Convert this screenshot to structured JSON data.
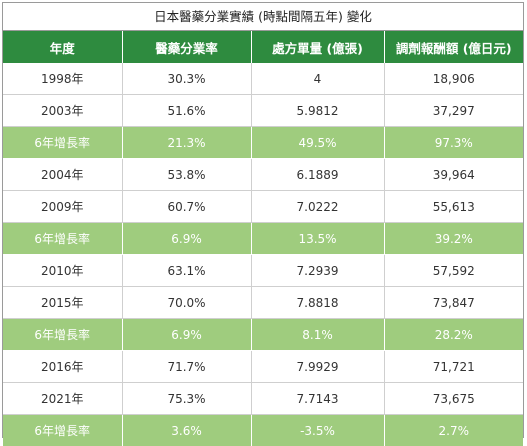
{
  "title": "日本醫藥分業實績 (時點間隔五年) 變化",
  "headers": [
    "年度",
    "醫藥分業率",
    "處方單量 (億張)",
    "調劑報酬額 (億日元)"
  ],
  "rows": [
    {
      "type": "data",
      "cells": [
        "1998年",
        "30.3%",
        "4",
        "18,906"
      ]
    },
    {
      "type": "data",
      "cells": [
        "2003年",
        "51.6%",
        "5.9812",
        "37,297"
      ]
    },
    {
      "type": "growth",
      "cells": [
        "6年增長率",
        "21.3%",
        "49.5%",
        "97.3%"
      ]
    },
    {
      "type": "data",
      "cells": [
        "2004年",
        "53.8%",
        "6.1889",
        "39,964"
      ]
    },
    {
      "type": "data",
      "cells": [
        "2009年",
        "60.7%",
        "7.0222",
        "55,613"
      ]
    },
    {
      "type": "growth",
      "cells": [
        "6年增長率",
        "6.9%",
        "13.5%",
        "39.2%"
      ]
    },
    {
      "type": "data",
      "cells": [
        "2010年",
        "63.1%",
        "7.2939",
        "57,592"
      ]
    },
    {
      "type": "data",
      "cells": [
        "2015年",
        "70.0%",
        "7.8818",
        "73,847"
      ]
    },
    {
      "type": "growth",
      "cells": [
        "6年增長率",
        "6.9%",
        "8.1%",
        "28.2%"
      ]
    },
    {
      "type": "data",
      "cells": [
        "2016年",
        "71.7%",
        "7.9929",
        "71,721"
      ]
    },
    {
      "type": "data",
      "cells": [
        "2021年",
        "75.3%",
        "7.7143",
        "73,675"
      ]
    },
    {
      "type": "growth",
      "cells": [
        "6年增長率",
        "3.6%",
        "-3.5%",
        "2.7%"
      ]
    }
  ],
  "colors": {
    "header_bg": "#2e8b3f",
    "growth_bg": "#9fcc7e",
    "text": "#333333",
    "header_text": "#ffffff"
  }
}
